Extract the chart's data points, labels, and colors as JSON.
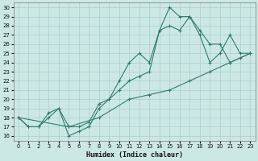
{
  "xlabel": "Humidex (Indice chaleur)",
  "bg_color": "#cce8e4",
  "line_color": "#2e7d6e",
  "grid_color": "#aacfcb",
  "xlim": [
    -0.5,
    23.5
  ],
  "ylim": [
    15.5,
    30.5
  ],
  "xticks": [
    0,
    1,
    2,
    3,
    4,
    5,
    6,
    7,
    8,
    9,
    10,
    11,
    12,
    13,
    14,
    15,
    16,
    17,
    18,
    19,
    20,
    21,
    22,
    23
  ],
  "yticks": [
    16,
    17,
    18,
    19,
    20,
    21,
    22,
    23,
    24,
    25,
    26,
    27,
    28,
    29,
    30
  ],
  "line1_x": [
    0,
    1,
    2,
    3,
    4,
    5,
    6,
    7,
    8,
    9,
    10,
    11,
    12,
    13,
    14,
    15,
    16,
    17,
    18,
    19,
    20,
    21,
    22,
    23
  ],
  "line1_y": [
    18,
    17,
    17,
    18,
    19,
    16,
    16.5,
    17,
    19,
    20,
    22,
    24,
    25,
    24,
    27.5,
    30,
    29,
    29,
    27,
    24,
    25,
    27,
    25,
    25
  ],
  "line2_x": [
    0,
    1,
    2,
    3,
    4,
    5,
    6,
    7,
    8,
    9,
    10,
    11,
    12,
    13,
    14,
    15,
    16,
    17,
    18,
    19,
    20,
    21,
    22,
    23
  ],
  "line2_y": [
    18,
    17,
    17,
    18.5,
    19,
    17,
    17,
    17.5,
    19.5,
    20,
    21,
    22,
    22.5,
    23,
    27.5,
    28,
    27.5,
    29,
    27.5,
    26,
    26,
    24,
    24.5,
    25
  ],
  "line3_x": [
    0,
    5,
    8,
    11,
    13,
    15,
    17,
    19,
    21,
    23
  ],
  "line3_y": [
    18,
    17,
    18,
    20,
    20.5,
    21,
    22,
    23,
    24,
    25
  ]
}
